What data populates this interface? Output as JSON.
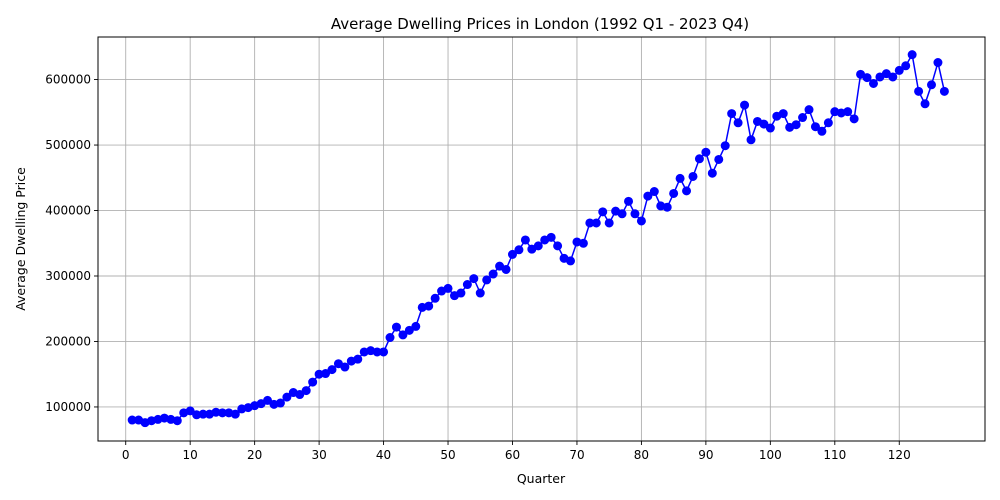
{
  "chart_data": {
    "type": "line",
    "title": "Average Dwelling Prices in London (1992 Q1 - 2023 Q4)",
    "xlabel": "Quarter",
    "ylabel": "Average Dwelling Price",
    "xlim": [
      -4.3,
      133.3
    ],
    "ylim": [
      48000,
      665000
    ],
    "xticks": [
      0,
      10,
      20,
      30,
      40,
      50,
      60,
      70,
      80,
      90,
      100,
      110,
      120
    ],
    "yticks": [
      100000,
      200000,
      300000,
      400000,
      500000,
      600000
    ],
    "grid": true,
    "series_color": "#0000ff",
    "x": [
      1,
      2,
      3,
      4,
      5,
      6,
      7,
      8,
      9,
      10,
      11,
      12,
      13,
      14,
      15,
      16,
      17,
      18,
      19,
      20,
      21,
      22,
      23,
      24,
      25,
      26,
      27,
      28,
      29,
      30,
      31,
      32,
      33,
      34,
      35,
      36,
      37,
      38,
      39,
      40,
      41,
      42,
      43,
      44,
      45,
      46,
      47,
      48,
      49,
      50,
      51,
      52,
      53,
      54,
      55,
      56,
      57,
      58,
      59,
      60,
      61,
      62,
      63,
      64,
      65,
      66,
      67,
      68,
      69,
      70,
      71,
      72,
      73,
      74,
      75,
      76,
      77,
      78,
      79,
      80,
      81,
      82,
      83,
      84,
      85,
      86,
      87,
      88,
      89,
      90,
      91,
      92,
      93,
      94,
      95,
      96,
      97,
      98,
      99,
      100,
      101,
      102,
      103,
      104,
      105,
      106,
      107,
      108,
      109,
      110,
      111,
      112,
      113,
      114,
      115,
      116,
      117,
      118,
      119,
      120,
      121,
      122,
      123,
      124,
      125,
      126,
      127
    ],
    "y": [
      80000,
      80000,
      76000,
      79000,
      81000,
      83000,
      81000,
      79000,
      91000,
      94000,
      88000,
      89000,
      89000,
      92000,
      91000,
      91000,
      89000,
      97000,
      99000,
      102000,
      105000,
      110000,
      104000,
      106000,
      115000,
      122000,
      119000,
      125000,
      138000,
      150000,
      151000,
      157000,
      166000,
      161000,
      170000,
      173000,
      184000,
      186000,
      184000,
      184000,
      206000,
      222000,
      210000,
      217000,
      223000,
      252000,
      254000,
      266000,
      277000,
      281000,
      270000,
      274000,
      287000,
      296000,
      274000,
      294000,
      303000,
      315000,
      310000,
      333000,
      340000,
      355000,
      341000,
      346000,
      355000,
      359000,
      346000,
      327000,
      323000,
      352000,
      350000,
      381000,
      381000,
      398000,
      381000,
      399000,
      395000,
      414000,
      395000,
      384000,
      422000,
      429000,
      407000,
      405000,
      426000,
      449000,
      430000,
      452000,
      479000,
      489000,
      457000,
      478000,
      499000,
      548000,
      534000,
      561000,
      508000,
      536000,
      532000,
      526000,
      544000,
      548000,
      527000,
      531000,
      542000,
      554000,
      528000,
      521000,
      534000,
      551000,
      549000,
      551000,
      540000,
      608000,
      603000,
      594000,
      604000,
      609000,
      604000,
      614000,
      621000,
      638000,
      582000,
      563000,
      592000,
      626000,
      582000
    ]
  }
}
